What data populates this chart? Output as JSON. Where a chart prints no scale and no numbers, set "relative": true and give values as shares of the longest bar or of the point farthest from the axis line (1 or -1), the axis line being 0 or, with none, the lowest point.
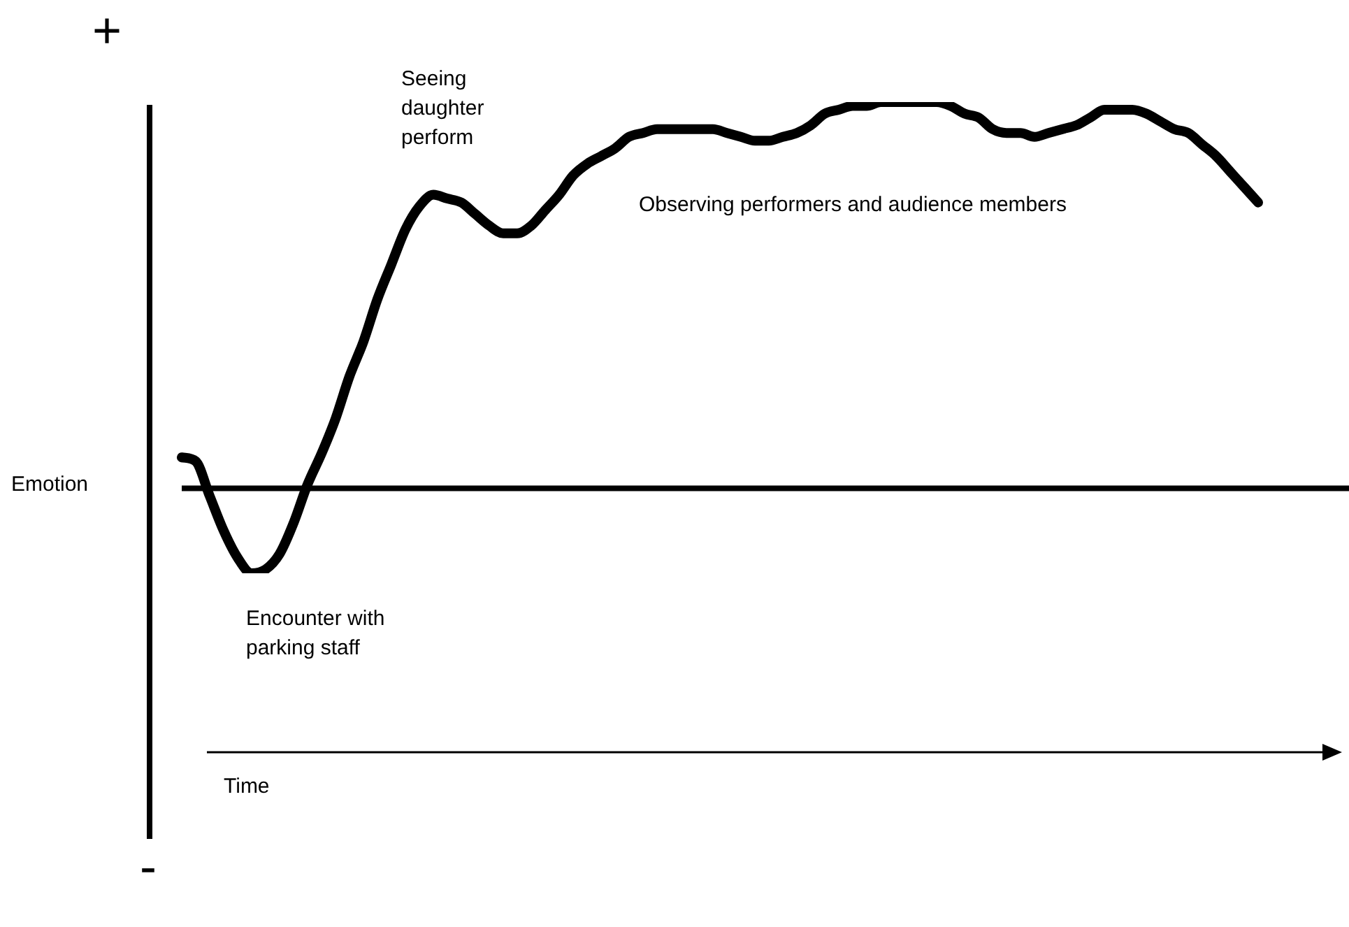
{
  "chart_data": {
    "type": "line",
    "relative": true,
    "marker": "none",
    "ylabel": "Emotion",
    "annotations": [
      "+",
      "Seeing daughter perform",
      "Observing performers and audience members",
      "Encounter with parking staff",
      "-",
      "Time"
    ],
    "categories": [
      null,
      null,
      null,
      null,
      null,
      null,
      null,
      null,
      null,
      null,
      null,
      null,
      null,
      null,
      null,
      null,
      null,
      null,
      null,
      null,
      null,
      null,
      null,
      null,
      null,
      null,
      null,
      null,
      null,
      null,
      null,
      null,
      null,
      null,
      null,
      null,
      null,
      null,
      null,
      null,
      null,
      null,
      null,
      null,
      null,
      null,
      null,
      null,
      null,
      null,
      null,
      null,
      null,
      null,
      null,
      null,
      null,
      null,
      null,
      null,
      null,
      null,
      null,
      null,
      null,
      null,
      null,
      null,
      null,
      null,
      null,
      null,
      null,
      null,
      null,
      null,
      null,
      null
    ],
    "series": [
      {
        "color": "#000000",
        "values": [
          0.08,
          0.07,
          -0.02,
          -0.11,
          -0.18,
          -0.22,
          -0.21,
          -0.17,
          -0.09,
          0.01,
          0.09,
          0.18,
          0.29,
          0.38,
          0.49,
          0.58,
          0.67,
          0.73,
          0.76,
          0.75,
          0.74,
          0.71,
          0.68,
          0.66,
          0.66,
          0.68,
          0.72,
          0.76,
          0.81,
          0.84,
          0.86,
          0.88,
          0.91,
          0.92,
          0.93,
          0.93,
          0.93,
          0.93,
          0.93,
          0.92,
          0.91,
          0.9,
          0.9,
          0.91,
          0.92,
          0.94,
          0.97,
          0.98,
          0.99,
          0.99,
          1.0,
          1.0,
          1.0,
          1.0,
          1.0,
          0.99,
          0.97,
          0.96,
          0.93,
          0.92,
          0.92,
          0.91,
          0.92,
          0.93,
          0.94,
          0.96,
          0.98,
          0.98,
          0.98,
          0.97,
          0.95,
          0.93,
          0.92,
          0.89,
          0.86,
          0.82,
          0.78,
          0.74
        ]
      }
    ]
  }
}
